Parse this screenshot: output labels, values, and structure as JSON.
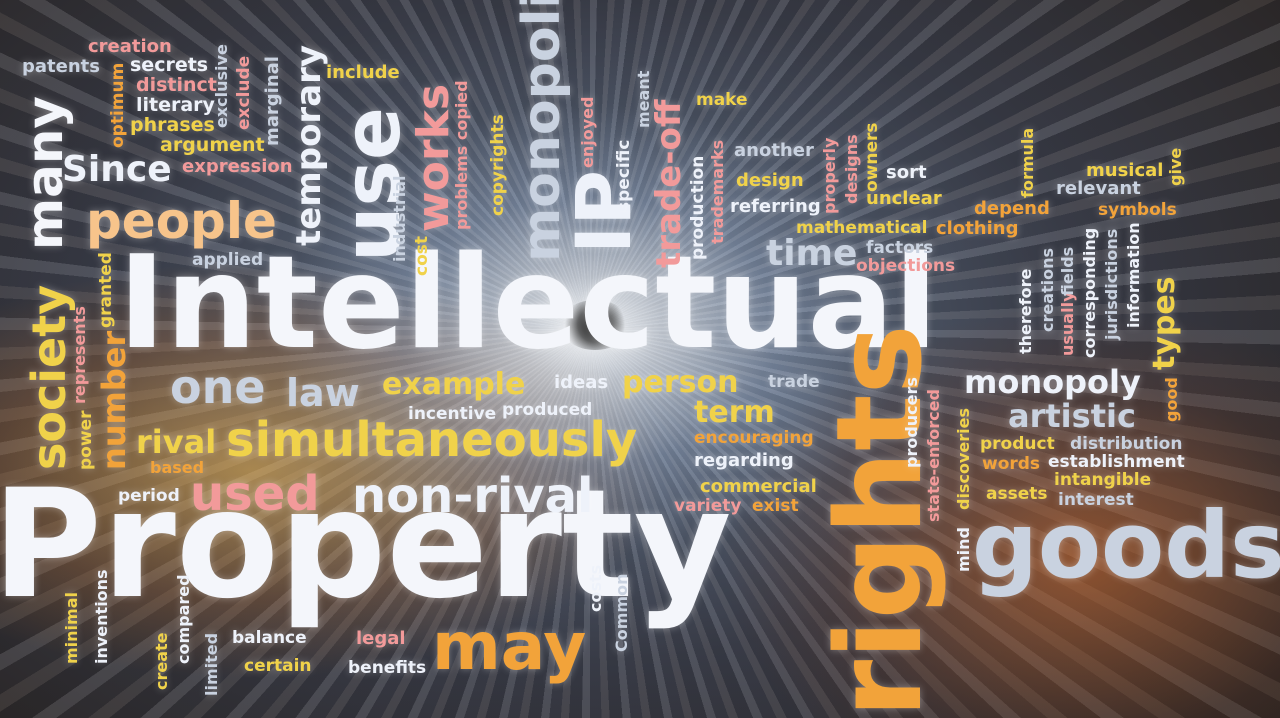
{
  "colors": {
    "white": "#f4f6fb",
    "pink": "#f29a9a",
    "gold": "#f0d24a",
    "orange": "#f2a33a",
    "silver": "#c9d2e0",
    "peach": "#f7c48b",
    "pale": "#eef2fa"
  },
  "words": {
    "intellectual": "Intellectual",
    "property": "Property",
    "rights": "rights",
    "goods": "goods",
    "use": "use",
    "ip": "IP",
    "monopoli": "monopoli",
    "people": "people",
    "simultaneously": "simultaneously",
    "non_rival": "non-rival",
    "used": "used",
    "may": "may",
    "one": "one",
    "law": "law",
    "example": "example",
    "ideas": "ideas",
    "person": "person",
    "trade": "trade",
    "monopoly": "monopoly",
    "artistic": "artistic",
    "time": "time",
    "term": "term",
    "rival": "rival",
    "society": "society",
    "many": "many",
    "number": "number",
    "since": "Since",
    "works": "works",
    "temporary": "temporary",
    "trade_off": "trade-off",
    "types": "types",
    "creation": "creation",
    "patents": "patents",
    "secrets": "secrets",
    "distinct": "distinct",
    "literary": "literary",
    "phrases": "phrases",
    "argument": "argument",
    "expression": "expression",
    "include": "include",
    "optimum": "optimum",
    "exclusive": "exclusive",
    "exclude": "exclude",
    "marginal": "marginal",
    "problems_copied": "problems copied",
    "copyrights": "copyrights",
    "enjoyed": "enjoyed",
    "meant": "meant",
    "specific": "specific",
    "make": "make",
    "production": "production",
    "trademarks": "trademarks",
    "another": "another",
    "design": "design",
    "referring": "referring",
    "properly": "properly",
    "designs": "designs",
    "owners": "owners",
    "sort": "sort",
    "unclear": "unclear",
    "formula": "formula",
    "musical": "musical",
    "give": "give",
    "relevant": "relevant",
    "depend": "depend",
    "symbols": "symbols",
    "mathematical": "mathematical",
    "clothing": "clothing",
    "factors": "factors",
    "objections": "objections",
    "applied": "applied",
    "industrial": "industrial",
    "cost": "cost",
    "granted": "granted",
    "represents": "represents",
    "power": "power",
    "based": "based",
    "period": "period",
    "incentive": "incentive",
    "produced": "produced",
    "encouraging": "encouraging",
    "regarding": "regarding",
    "commercial": "commercial",
    "variety": "variety",
    "exist": "exist",
    "producers": "producers",
    "state_enforced": "state-enforced",
    "discoveries": "discoveries",
    "mind": "mind",
    "product": "product",
    "distribution": "distribution",
    "words": "words",
    "establishment": "establishment",
    "intangible": "intangible",
    "assets": "assets",
    "interest": "interest",
    "therefore": "therefore",
    "creations": "creations",
    "usually": "usually",
    "fields": "fields",
    "corresponding": "corresponding",
    "jurisdictions": "jurisdictions",
    "information": "information",
    "good": "good",
    "minimal": "minimal",
    "inventions": "inventions",
    "create": "create",
    "compared": "compared",
    "limited": "limited",
    "balance": "balance",
    "certain": "certain",
    "legal": "legal",
    "benefits": "benefits",
    "costs": "costs",
    "common": "Common"
  }
}
